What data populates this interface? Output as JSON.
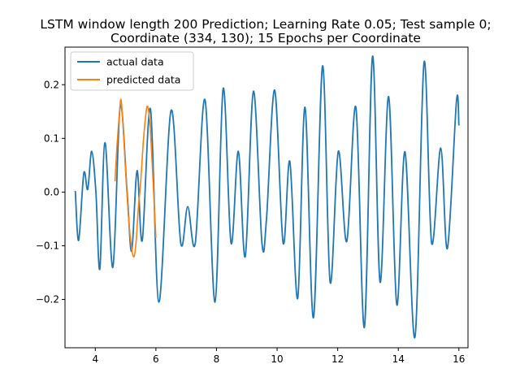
{
  "chart_data": {
    "type": "line",
    "title_lines": [
      "LSTM window length 200 Prediction; Learning Rate 0.05; Test sample 0;",
      "Coordinate (334, 130); 15 Epochs per Coordinate"
    ],
    "xlabel": "",
    "ylabel": "",
    "xlim": [
      3.0,
      16.3
    ],
    "ylim": [
      -0.29,
      0.27
    ],
    "xticks": [
      4,
      6,
      8,
      10,
      12,
      14,
      16
    ],
    "yticks": [
      -0.2,
      -0.1,
      0.0,
      0.1,
      0.2
    ],
    "ytick_labels": [
      "−0.2",
      "−0.1",
      "0.0",
      "0.1",
      "0.2"
    ],
    "legend_position": "upper-left",
    "series": [
      {
        "name": "actual data",
        "color": "#1f77b4",
        "points": [
          [
            3.34,
            0.002
          ],
          [
            3.45,
            -0.09
          ],
          [
            3.62,
            0.035
          ],
          [
            3.75,
            0.005
          ],
          [
            3.88,
            0.076
          ],
          [
            4.02,
            0.0
          ],
          [
            4.15,
            -0.143
          ],
          [
            4.32,
            0.092
          ],
          [
            4.58,
            -0.14
          ],
          [
            4.82,
            0.16
          ],
          [
            5.05,
            0.0
          ],
          [
            5.2,
            -0.11
          ],
          [
            5.38,
            0.04
          ],
          [
            5.55,
            -0.09
          ],
          [
            5.82,
            0.155
          ],
          [
            6.1,
            -0.205
          ],
          [
            6.5,
            0.152
          ],
          [
            6.82,
            -0.095
          ],
          [
            7.05,
            -0.027
          ],
          [
            7.3,
            -0.095
          ],
          [
            7.62,
            0.172
          ],
          [
            7.95,
            -0.205
          ],
          [
            8.22,
            0.193
          ],
          [
            8.48,
            -0.095
          ],
          [
            8.72,
            0.076
          ],
          [
            8.95,
            -0.12
          ],
          [
            9.22,
            0.188
          ],
          [
            9.5,
            -0.095
          ],
          [
            9.65,
            -0.05
          ],
          [
            9.92,
            0.19
          ],
          [
            10.2,
            -0.095
          ],
          [
            10.42,
            0.057
          ],
          [
            10.68,
            -0.198
          ],
          [
            10.92,
            0.158
          ],
          [
            11.2,
            -0.234
          ],
          [
            11.5,
            0.235
          ],
          [
            11.75,
            -0.168
          ],
          [
            12.02,
            0.076
          ],
          [
            12.3,
            -0.092
          ],
          [
            12.6,
            0.158
          ],
          [
            12.88,
            -0.252
          ],
          [
            13.15,
            0.253
          ],
          [
            13.4,
            -0.168
          ],
          [
            13.68,
            0.178
          ],
          [
            13.95,
            -0.21
          ],
          [
            14.22,
            0.075
          ],
          [
            14.55,
            -0.27
          ],
          [
            14.85,
            0.242
          ],
          [
            15.1,
            -0.095
          ],
          [
            15.4,
            0.082
          ],
          [
            15.62,
            -0.105
          ],
          [
            15.92,
            0.17
          ],
          [
            16.0,
            0.124
          ]
        ]
      },
      {
        "name": "predicted data",
        "color": "#ff7f0e",
        "points": [
          [
            4.65,
            0.02
          ],
          [
            4.72,
            0.09
          ],
          [
            4.8,
            0.148
          ],
          [
            4.85,
            0.172
          ],
          [
            4.92,
            0.12
          ],
          [
            5.0,
            0.04
          ],
          [
            5.1,
            -0.05
          ],
          [
            5.2,
            -0.105
          ],
          [
            5.28,
            -0.12
          ],
          [
            5.35,
            -0.09
          ],
          [
            5.42,
            -0.03
          ],
          [
            5.5,
            0.02
          ],
          [
            5.58,
            0.09
          ],
          [
            5.66,
            0.14
          ],
          [
            5.72,
            0.16
          ],
          [
            5.8,
            0.13
          ],
          [
            5.88,
            0.05
          ],
          [
            5.95,
            -0.03
          ],
          [
            6.0,
            -0.085
          ]
        ]
      }
    ]
  }
}
